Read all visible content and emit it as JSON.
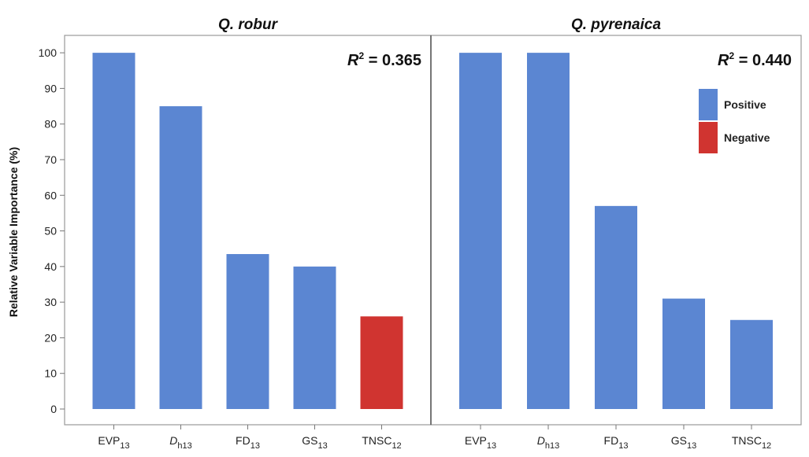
{
  "chart_data": {
    "type": "bar",
    "ylabel": "Relative Variable Importance (%)",
    "ylim": [
      0,
      104
    ],
    "yticks": [
      0,
      10,
      20,
      30,
      40,
      50,
      60,
      70,
      80,
      90,
      100
    ],
    "categories": [
      {
        "base": "EVP",
        "sub": "13",
        "italic": false
      },
      {
        "base": "D",
        "sub": "h13",
        "italic": true
      },
      {
        "base": "FD",
        "sub": "13",
        "italic": false
      },
      {
        "base": "GS",
        "sub": "13",
        "italic": false
      },
      {
        "base": "TNSC",
        "sub": "12",
        "italic": false
      }
    ],
    "legend": {
      "placement": "top-right",
      "entries": [
        {
          "label": "Positive",
          "color": "#5b86d2"
        },
        {
          "label": "Negative",
          "color": "#d03430"
        }
      ]
    },
    "panels": [
      {
        "title": "Q. robur",
        "r2_label": "R",
        "r2_sup": "2",
        "r2_value": " = 0.365",
        "values": [
          100,
          85,
          43.5,
          40,
          26
        ],
        "signs": [
          "Positive",
          "Positive",
          "Positive",
          "Positive",
          "Negative"
        ]
      },
      {
        "title": "Q. pyrenaica",
        "r2_label": "R",
        "r2_sup": "2",
        "r2_value": " = 0.440",
        "values": [
          100,
          100,
          57,
          31,
          25
        ],
        "signs": [
          "Positive",
          "Positive",
          "Positive",
          "Positive",
          "Positive"
        ]
      }
    ]
  }
}
